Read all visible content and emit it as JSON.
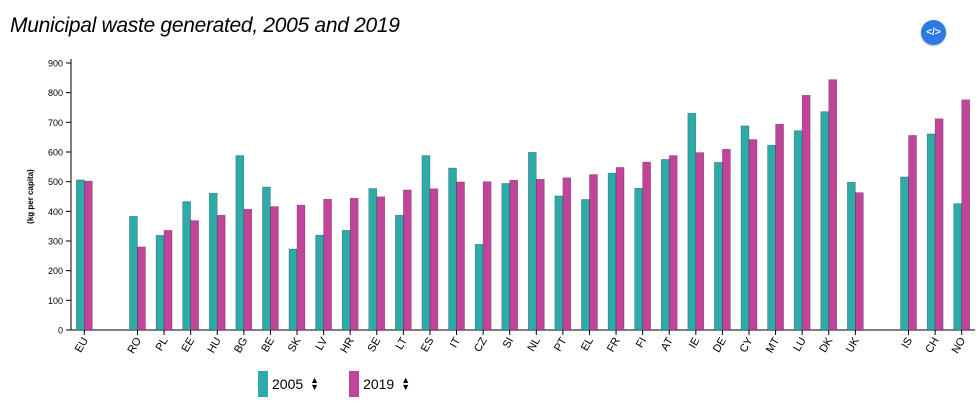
{
  "title": "Municipal waste generated, 2005 and 2019",
  "embed_icon": "code-icon",
  "embed_label": "</>",
  "colors": {
    "s2005": "#2eaaa8",
    "s2019": "#c1449a",
    "axis": "#000000"
  },
  "chart_data": {
    "type": "bar",
    "title": "Municipal waste generated, 2005 and 2019",
    "ylabel": "(kg per capita)",
    "xlabel": "",
    "ylim": [
      0,
      900
    ],
    "yticks": [
      0,
      100,
      200,
      300,
      400,
      500,
      600,
      700,
      800,
      900
    ],
    "categories": [
      "EU",
      "",
      "RO",
      "PL",
      "EE",
      "HU",
      "BG",
      "BE",
      "SK",
      "LV",
      "HR",
      "SE",
      "LT",
      "ES",
      "IT",
      "CZ",
      "SI",
      "NL",
      "PT",
      "EL",
      "FR",
      "FI",
      "AT",
      "IE",
      "DE",
      "CY",
      "MT",
      "LU",
      "DK",
      "UK",
      "",
      "IS",
      "CH",
      "NO"
    ],
    "series": [
      {
        "name": "2005",
        "values": [
          506,
          null,
          383,
          319,
          433,
          461,
          588,
          482,
          273,
          320,
          336,
          477,
          387,
          588,
          546,
          289,
          494,
          599,
          452,
          440,
          529,
          478,
          575,
          731,
          565,
          688,
          623,
          672,
          736,
          498,
          null,
          516,
          661,
          426
        ]
      },
      {
        "name": "2019",
        "values": [
          502,
          null,
          280,
          336,
          369,
          387,
          407,
          416,
          421,
          441,
          444,
          449,
          472,
          476,
          499,
          500,
          505,
          508,
          513,
          524,
          548,
          566,
          588,
          598,
          609,
          642,
          694,
          791,
          844,
          463,
          null,
          656,
          712,
          776
        ]
      }
    ]
  },
  "legend": [
    {
      "label": "2005",
      "sort_icon": "sort-arrows-icon"
    },
    {
      "label": "2019",
      "sort_icon": "sort-arrows-icon"
    }
  ]
}
